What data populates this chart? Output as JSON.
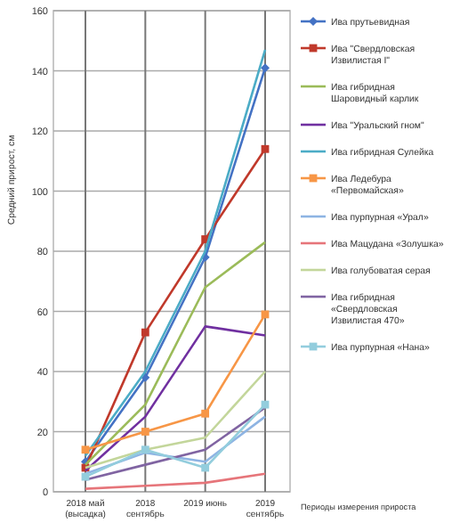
{
  "chart_data": {
    "type": "line",
    "ylabel": "Средний прирост, см",
    "xlabel": "Периоды измерения прироста",
    "categories": [
      "2018 май (высадка)",
      "2018 сентябрь",
      "2019 июнь",
      "2019 сентябрь"
    ],
    "ylim": [
      0,
      160
    ],
    "yticks": [
      0,
      20,
      40,
      60,
      80,
      100,
      120,
      140,
      160
    ],
    "grid": true,
    "legend": "right",
    "series": [
      {
        "name": "Ива прутьевидная",
        "color": "#4472c4",
        "marker": "diamond",
        "values": [
          10,
          38,
          78,
          141
        ]
      },
      {
        "name": "Ива \"Свердловская Извилистая I\"",
        "color": "#c0392b",
        "marker": "square",
        "values": [
          8,
          53,
          84,
          114
        ]
      },
      {
        "name": "Ива гибридная Шаровидный карлик",
        "color": "#9bbb59",
        "marker": "none",
        "values": [
          9,
          29,
          68,
          83
        ]
      },
      {
        "name": "Ива \"Уральский гном\"",
        "color": "#7030a0",
        "marker": "none",
        "values": [
          7,
          25,
          55,
          52
        ]
      },
      {
        "name": "Ива гибридная Сулейка",
        "color": "#4bacc6",
        "marker": "none",
        "values": [
          12,
          40,
          80,
          147
        ]
      },
      {
        "name": "Ива Ледебура «Первомайская»",
        "color": "#f79646",
        "marker": "square",
        "values": [
          14,
          20,
          26,
          59
        ]
      },
      {
        "name": "Ива пурпурная «Урал»",
        "color": "#8eb4e3",
        "marker": "none",
        "values": [
          6,
          13,
          10,
          25
        ]
      },
      {
        "name": "Ива Мацудана «Золушка»",
        "color": "#e6757a",
        "marker": "none",
        "values": [
          1,
          2,
          3,
          6
        ]
      },
      {
        "name": "Ива голубоватая серая",
        "color": "#c3d69b",
        "marker": "none",
        "values": [
          8,
          14,
          18,
          40
        ]
      },
      {
        "name": "Ива гибридная «Свердловская Извилистая 470»",
        "color": "#8064a2",
        "marker": "none",
        "values": [
          4,
          9,
          14,
          28
        ]
      },
      {
        "name": "Ива пурпурная «Нана»",
        "color": "#93cddd",
        "marker": "square",
        "values": [
          5,
          14,
          8,
          29
        ]
      }
    ]
  }
}
